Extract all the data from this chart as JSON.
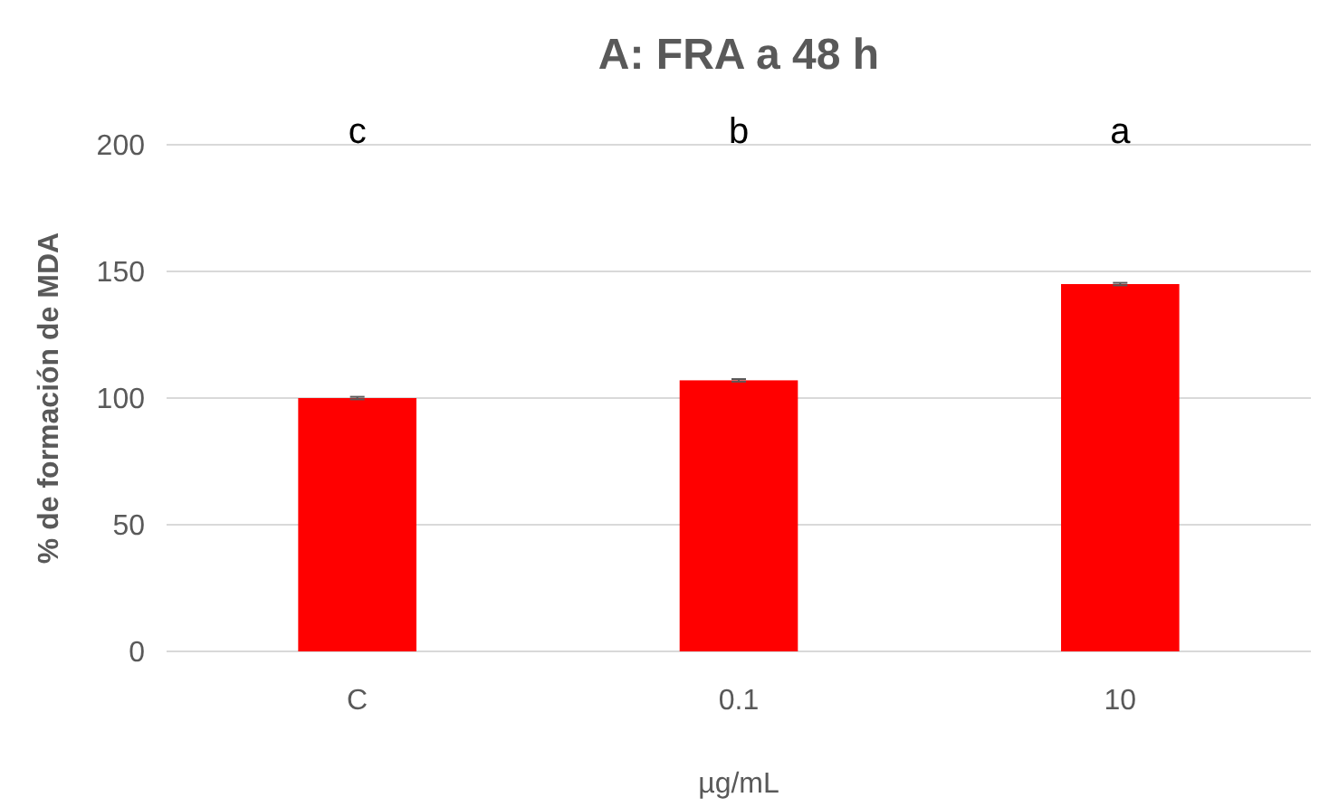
{
  "chart_data": {
    "type": "bar",
    "title": "A: FRA a 48 h",
    "xlabel": "µg/mL",
    "ylabel": "% de formación de MDA",
    "categories": [
      "C",
      "0.1",
      "10"
    ],
    "values": [
      100,
      107,
      145
    ],
    "errors": [
      0.5,
      0.5,
      0.5
    ],
    "color": "#ff0000",
    "ylim": [
      0,
      200
    ],
    "yticks": [
      0,
      50,
      100,
      150,
      200
    ],
    "grid": "y",
    "annotations": [
      "c",
      "b",
      "a"
    ]
  }
}
